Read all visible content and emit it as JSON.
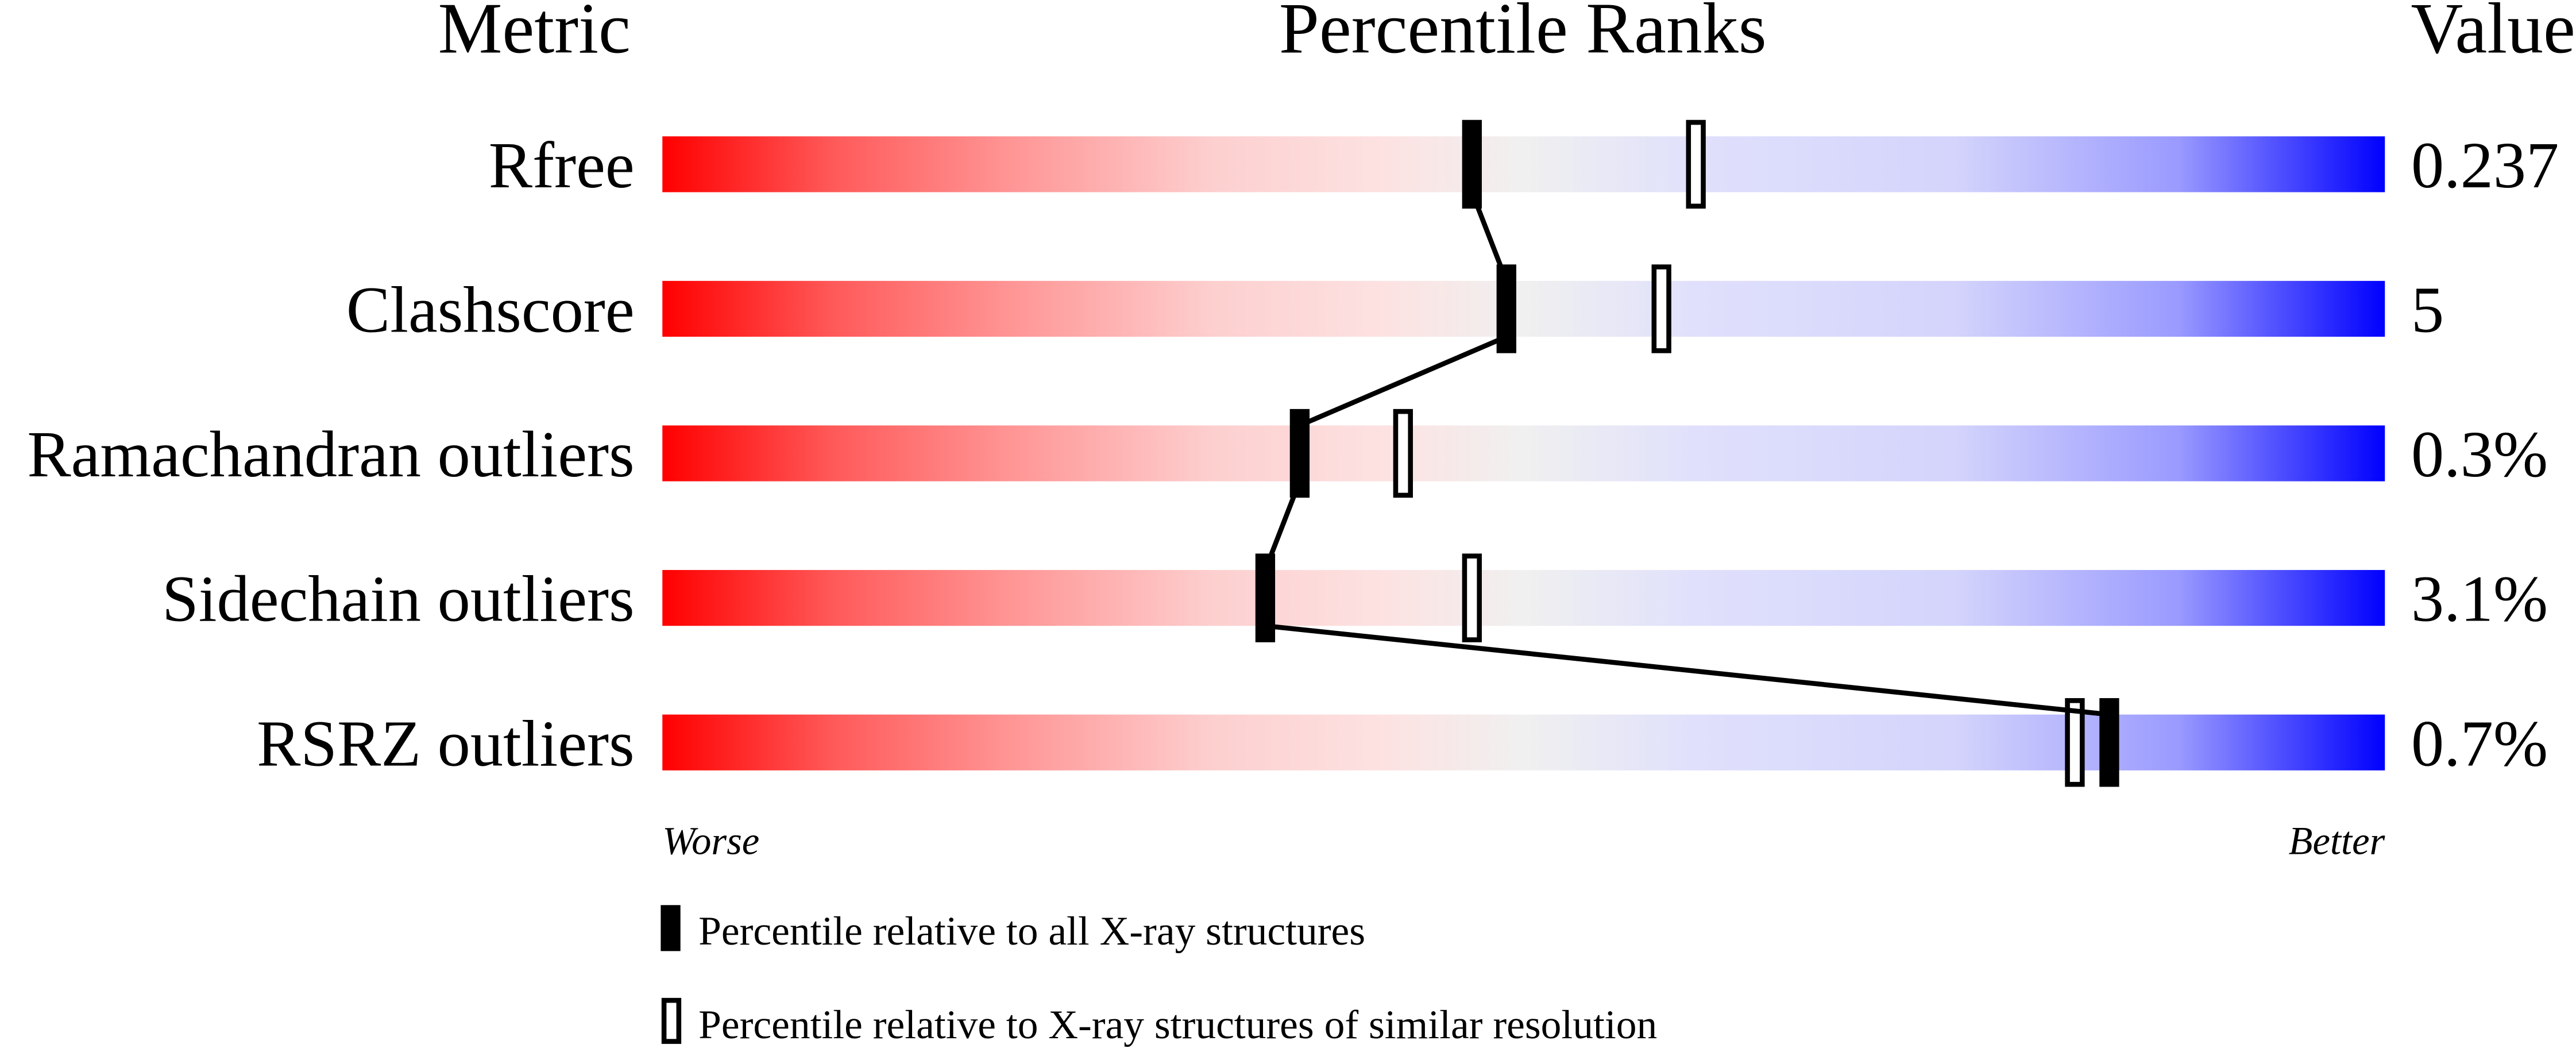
{
  "chart_data": {
    "type": "percentile-ranks",
    "headers": {
      "metric": "Metric",
      "title": "Percentile Ranks",
      "value": "Value"
    },
    "xlim": [
      0,
      100
    ],
    "axis_labels": {
      "left": "Worse",
      "right": "Better"
    },
    "gradient_colors": [
      "#ff0000",
      "#f0f0f0",
      "#0000ff"
    ],
    "rows": [
      {
        "metric": "Rfree",
        "value": "0.237",
        "percentile_all": 47,
        "percentile_similar": 60
      },
      {
        "metric": "Clashscore",
        "value": "5",
        "percentile_all": 49,
        "percentile_similar": 58
      },
      {
        "metric": "Ramachandran outliers",
        "value": "0.3%",
        "percentile_all": 37,
        "percentile_similar": 43
      },
      {
        "metric": "Sidechain outliers",
        "value": "3.1%",
        "percentile_all": 35,
        "percentile_similar": 47
      },
      {
        "metric": "RSRZ outliers",
        "value": "0.7%",
        "percentile_all": 84,
        "percentile_similar": 82
      }
    ],
    "legend": [
      {
        "marker": "filled",
        "label": "Percentile relative to all X-ray structures"
      },
      {
        "marker": "open",
        "label": "Percentile relative to X-ray structures of similar resolution"
      }
    ]
  }
}
